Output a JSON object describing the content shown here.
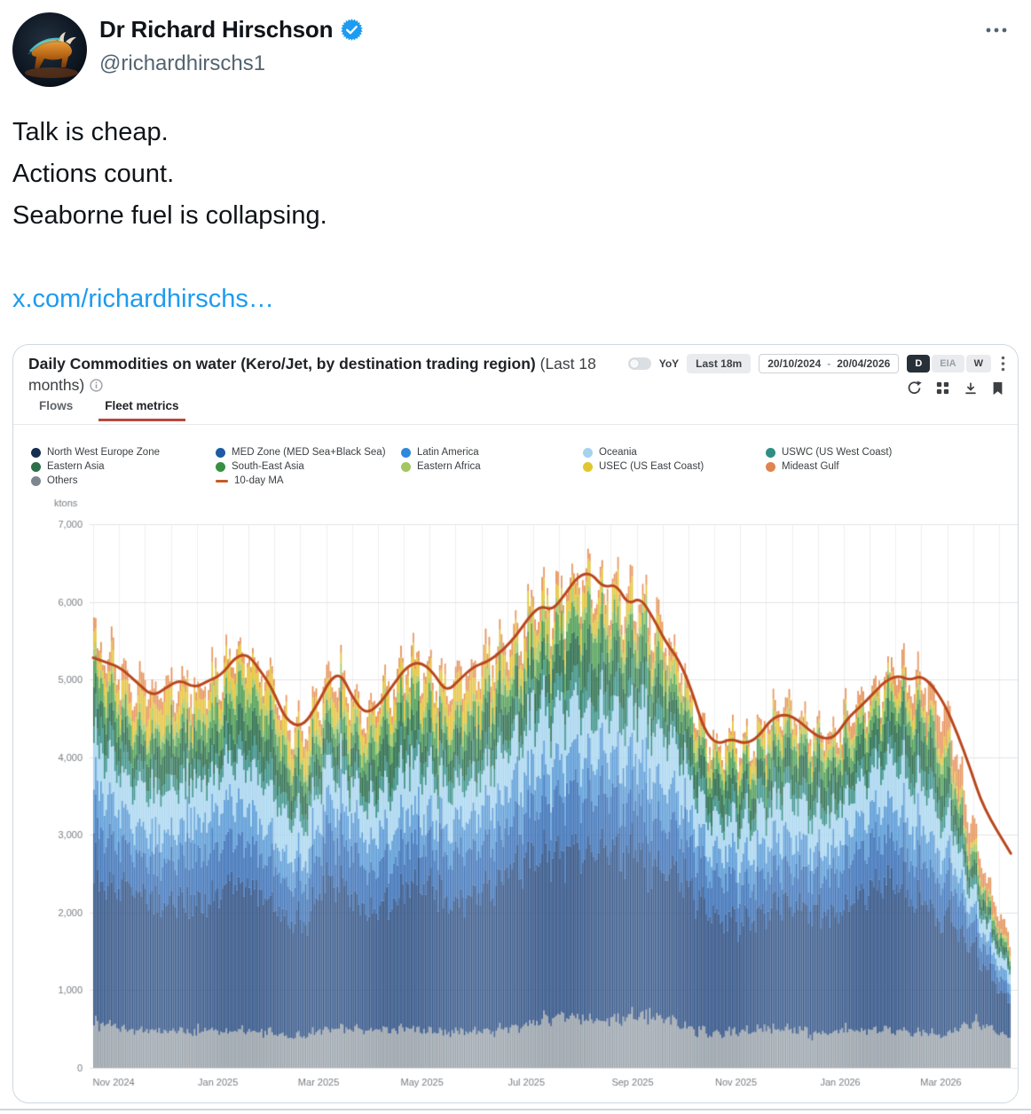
{
  "tweet": {
    "display_name": "Dr Richard Hirschson",
    "handle": "@richardhirschs1",
    "body_lines": [
      "Talk is cheap.",
      "Actions count.",
      "Seaborne fuel is collapsing."
    ],
    "link_text": "x.com/richardhirschs…"
  },
  "card": {
    "title": "Daily Commodities on water (Kero/Jet, by destination trading region)",
    "title_suffix": "(Last 18 months)",
    "tabs": [
      {
        "label": "Flows",
        "active": false
      },
      {
        "label": "Fleet metrics",
        "active": true
      }
    ],
    "controls": {
      "yoy_label": "YoY",
      "range_button": "Last 18m",
      "date_from": "20/10/2024",
      "date_separator": "-",
      "date_to": "20/04/2026",
      "freq_buttons": [
        {
          "label": "D",
          "active": true
        },
        {
          "label": "EIA",
          "active": false
        },
        {
          "label": "W",
          "active": false
        }
      ]
    }
  },
  "legend": {
    "columns": [
      [
        {
          "label": "North West Europe Zone",
          "color": "#142e52",
          "type": "dot"
        },
        {
          "label": "Eastern Asia",
          "color": "#2c6e49",
          "type": "dot"
        },
        {
          "label": "Others",
          "color": "#7c868f",
          "type": "dot"
        }
      ],
      [
        {
          "label": "MED Zone (MED Sea+Black Sea)",
          "color": "#1d5ca5",
          "type": "dot"
        },
        {
          "label": "South-East Asia",
          "color": "#389143",
          "type": "dot"
        },
        {
          "label": "10-day MA",
          "color": "#c65a28",
          "type": "line"
        }
      ],
      [
        {
          "label": "Latin America",
          "color": "#2f88dd",
          "type": "dot"
        },
        {
          "label": "Eastern Africa",
          "color": "#a4c661",
          "type": "dot"
        }
      ],
      [
        {
          "label": "Oceania",
          "color": "#a5d2ee",
          "type": "dot"
        },
        {
          "label": "USEC (US East Coast)",
          "color": "#dfc72c",
          "type": "dot"
        }
      ],
      [
        {
          "label": "USWC (US West Coast)",
          "color": "#2d8f85",
          "type": "dot"
        },
        {
          "label": "Mideast Gulf",
          "color": "#e0854f",
          "type": "dot"
        }
      ]
    ]
  },
  "chart_data": {
    "type": "area",
    "title": "Daily Commodities on water (Kero/Jet, by destination trading region)",
    "subtitle": "(Last 18 months)",
    "unit": "ktons",
    "x_range": [
      "20/10/2024",
      "20/04/2026"
    ],
    "ylim": [
      0,
      7000
    ],
    "grid": true,
    "data_fraction": 0.985,
    "yticks": [
      {
        "v": 0,
        "label": "0"
      },
      {
        "v": 1000,
        "label": "1,000"
      },
      {
        "v": 2000,
        "label": "2,000"
      },
      {
        "v": 3000,
        "label": "3,000"
      },
      {
        "v": 4000,
        "label": "4,000"
      },
      {
        "v": 5000,
        "label": "5,000"
      },
      {
        "v": 6000,
        "label": "6,000"
      },
      {
        "v": 7000,
        "label": "7,000"
      }
    ],
    "xticks": [
      {
        "label": "Nov 2024",
        "t": 0.022
      },
      {
        "label": "Jan 2025",
        "t": 0.134
      },
      {
        "label": "Mar 2025",
        "t": 0.242
      },
      {
        "label": "May 2025",
        "t": 0.353
      },
      {
        "label": "Jul 2025",
        "t": 0.465
      },
      {
        "label": "Sep 2025",
        "t": 0.579
      },
      {
        "label": "Nov 2025",
        "t": 0.69
      },
      {
        "label": "Jan 2026",
        "t": 0.802
      },
      {
        "label": "Mar 2026",
        "t": 0.91
      }
    ],
    "ma_line": {
      "name": "10-day MA",
      "color": "#b9471d",
      "points": [
        [
          0.0,
          5280
        ],
        [
          0.015,
          5220
        ],
        [
          0.03,
          5150
        ],
        [
          0.048,
          4960
        ],
        [
          0.065,
          4780
        ],
        [
          0.08,
          4900
        ],
        [
          0.095,
          5000
        ],
        [
          0.11,
          4890
        ],
        [
          0.125,
          4980
        ],
        [
          0.14,
          5060
        ],
        [
          0.155,
          5290
        ],
        [
          0.168,
          5330
        ],
        [
          0.18,
          5150
        ],
        [
          0.195,
          4890
        ],
        [
          0.21,
          4470
        ],
        [
          0.228,
          4380
        ],
        [
          0.245,
          4690
        ],
        [
          0.258,
          5000
        ],
        [
          0.27,
          5080
        ],
        [
          0.283,
          4760
        ],
        [
          0.297,
          4550
        ],
        [
          0.312,
          4680
        ],
        [
          0.328,
          4950
        ],
        [
          0.342,
          5170
        ],
        [
          0.356,
          5230
        ],
        [
          0.37,
          5100
        ],
        [
          0.385,
          4830
        ],
        [
          0.4,
          5010
        ],
        [
          0.415,
          5170
        ],
        [
          0.43,
          5230
        ],
        [
          0.447,
          5380
        ],
        [
          0.462,
          5580
        ],
        [
          0.476,
          5820
        ],
        [
          0.488,
          5950
        ],
        [
          0.5,
          5890
        ],
        [
          0.514,
          6090
        ],
        [
          0.528,
          6330
        ],
        [
          0.542,
          6380
        ],
        [
          0.556,
          6180
        ],
        [
          0.57,
          6230
        ],
        [
          0.583,
          5960
        ],
        [
          0.596,
          6060
        ],
        [
          0.61,
          5800
        ],
        [
          0.625,
          5460
        ],
        [
          0.638,
          5260
        ],
        [
          0.652,
          4870
        ],
        [
          0.666,
          4340
        ],
        [
          0.68,
          4160
        ],
        [
          0.695,
          4240
        ],
        [
          0.71,
          4170
        ],
        [
          0.724,
          4250
        ],
        [
          0.738,
          4480
        ],
        [
          0.752,
          4560
        ],
        [
          0.766,
          4500
        ],
        [
          0.78,
          4350
        ],
        [
          0.794,
          4240
        ],
        [
          0.808,
          4250
        ],
        [
          0.822,
          4500
        ],
        [
          0.836,
          4650
        ],
        [
          0.85,
          4820
        ],
        [
          0.864,
          4990
        ],
        [
          0.878,
          5050
        ],
        [
          0.89,
          4990
        ],
        [
          0.902,
          5050
        ],
        [
          0.914,
          4930
        ],
        [
          0.928,
          4680
        ],
        [
          0.942,
          4300
        ],
        [
          0.956,
          3850
        ],
        [
          0.97,
          3350
        ],
        [
          1.0,
          2760
        ]
      ]
    },
    "layers": [
      {
        "name": "Others",
        "color": "#9ba4ac",
        "share": 0.1,
        "amp": 0.1,
        "mods": [
          [
            0.55,
            0.78,
            1.15
          ],
          [
            0.93,
            1.01,
            3.0
          ]
        ]
      },
      {
        "name": "North West Europe Zone",
        "color": "#37588a",
        "share": 0.365,
        "amp": 0.11,
        "mods": []
      },
      {
        "name": "MED Zone (MED Sea+Black Sea)",
        "color": "#4276ba",
        "share": 0.115,
        "amp": 0.16,
        "mods": []
      },
      {
        "name": "Latin America",
        "color": "#5f9ed8",
        "share": 0.085,
        "amp": 0.22,
        "mods": []
      },
      {
        "name": "Oceania",
        "color": "#abd7f0",
        "share": 0.105,
        "amp": 0.26,
        "mods": []
      },
      {
        "name": "USWC (US West Coast)",
        "color": "#3f948c",
        "share": 0.045,
        "amp": 0.35,
        "mods": []
      },
      {
        "name": "Eastern Asia",
        "color": "#2f7050",
        "share": 0.07,
        "amp": 0.35,
        "mods": []
      },
      {
        "name": "South-East Asia",
        "color": "#54a159",
        "share": 0.05,
        "amp": 0.4,
        "mods": []
      },
      {
        "name": "Eastern Africa",
        "color": "#a6ca6a",
        "share": 0.025,
        "amp": 0.5,
        "mods": []
      },
      {
        "name": "USEC (US East Coast)",
        "color": "#e6c53e",
        "share": 0.033,
        "amp": 0.55,
        "mods": [
          [
            0.02,
            0.5,
            1.7
          ],
          [
            0.75,
            1.01,
            0.6
          ]
        ]
      },
      {
        "name": "Mideast Gulf",
        "color": "#e6955c",
        "share": 0.027,
        "amp": 0.45,
        "mods": [
          [
            0.0,
            0.07,
            1.6
          ],
          [
            0.86,
            1.01,
            3.2
          ]
        ]
      }
    ]
  }
}
